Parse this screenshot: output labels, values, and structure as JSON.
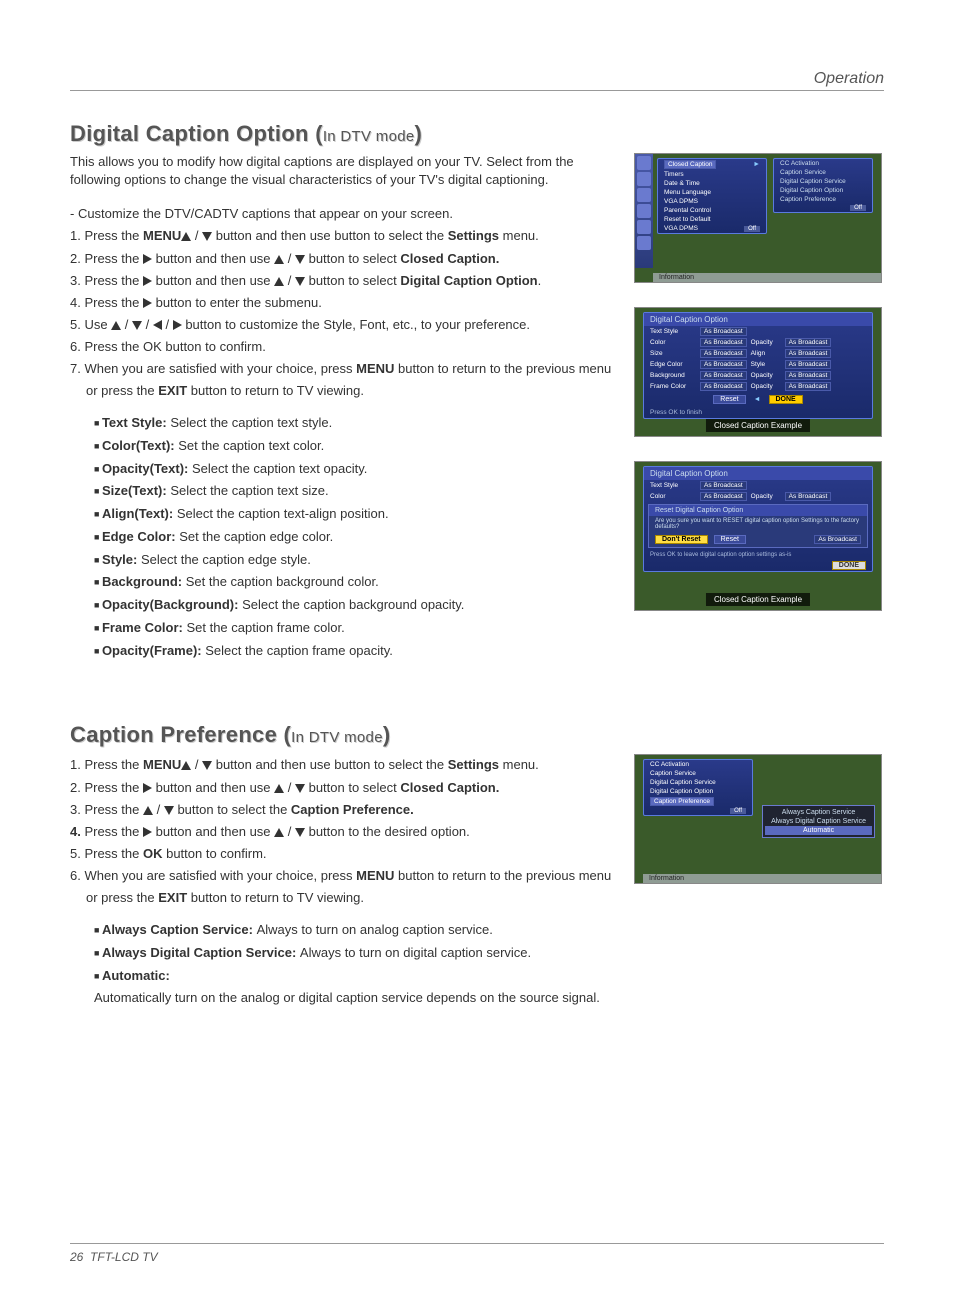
{
  "header": {
    "section": "Operation"
  },
  "section1": {
    "title_main": "Digital Caption Option (",
    "title_sub": "In DTV mode",
    "title_end": ")",
    "intro": "This allows you to modify how digital captions are displayed on your TV. Select from the following options to change the visual characteristics of your TV's digital captioning.",
    "note": "- Customize the DTV/CADTV captions that appear on your screen.",
    "steps": [
      {
        "n": "1.",
        "pre": "Press the ",
        "b1": "MENU",
        "mid": " button and then use ",
        "arrows": "ud",
        "post": " button to select the ",
        "b2": "Settings",
        "end": " menu."
      },
      {
        "n": "2.",
        "pre": "Press the ",
        "arrows": "r",
        "mid": " button and then use ",
        "arrows2": "ud",
        "post": " button to select ",
        "b2": "Closed Caption.",
        "end": ""
      },
      {
        "n": "3.",
        "pre": "Press the ",
        "arrows": "r",
        "mid": " button and then use ",
        "arrows2": "ud",
        "post": " button to select ",
        "b2": "Digital Caption Option",
        "end": "."
      },
      {
        "n": "4.",
        "pre": "Press the ",
        "arrows": "r",
        "mid": " button to enter the submenu.",
        "post": "",
        "end": ""
      },
      {
        "n": "5.",
        "pre": "Use ",
        "arrows": "udlr",
        "mid": " button to customize the Style, Font, etc., to your preference.",
        "post": "",
        "end": ""
      },
      {
        "n": "6.",
        "pre": "Press the OK button to confirm.",
        "mid": "",
        "post": "",
        "end": ""
      },
      {
        "n": "7.",
        "pre": "When you are satisfied with your choice,  press ",
        "b1": "MENU",
        "mid": " button to return to the previous menu or press the ",
        "b2": "EXIT",
        "end": " button to return to TV viewing."
      }
    ],
    "options": [
      {
        "label": "Text Style:",
        "desc": "Select the caption text style."
      },
      {
        "label": "Color(Text):",
        "desc": "Set the caption text color."
      },
      {
        "label": "Opacity(Text):",
        "desc": "Select the caption text opacity."
      },
      {
        "label": "Size(Text):",
        "desc": "Select the caption text size."
      },
      {
        "label": "Align(Text):",
        "desc": "Select the caption text-align position."
      },
      {
        "label": "Edge Color:",
        "desc": "Set the caption edge color."
      },
      {
        "label": "Style:",
        "desc": "Select the caption edge style."
      },
      {
        "label": "Background:",
        "desc": "Set the caption background color."
      },
      {
        "label": "Opacity(Background):",
        "desc": "Select the caption background opacity."
      },
      {
        "label": "Frame Color:",
        "desc": "Set the caption frame color."
      },
      {
        "label": "Opacity(Frame):",
        "desc": "Select the caption frame opacity."
      }
    ]
  },
  "section2": {
    "title_main": "Caption Preference (",
    "title_sub": "In DTV mode",
    "title_end": ")",
    "steps": [
      {
        "n": "1.",
        "pre": "Press the ",
        "b1": "MENU",
        "mid": " button and then use ",
        "arrows": "ud",
        "post": "  button to select the ",
        "b2": "Settings",
        "end": " menu."
      },
      {
        "n": "2.",
        "pre": " Press the ",
        "arrows": "r",
        "mid": " button and then use ",
        "arrows2": "ud",
        "post": " button to select ",
        "b2": "Closed Caption.",
        "end": ""
      },
      {
        "n": "3.",
        "pre": "Press the ",
        "arrows": "ud",
        "mid": " button to select the ",
        "b2": "Caption Preference.",
        "end": ""
      },
      {
        "n": "4.",
        "pre": "Press the ",
        "bold_n": true,
        "arrows": "r",
        "mid": " button and then use ",
        "arrows2": "ud",
        "post": " button to the desired option.",
        "end": ""
      },
      {
        "n": "5.",
        "pre": "Press the ",
        "b1": "OK",
        "mid": " button to confirm.",
        "end": ""
      },
      {
        "n": "6.",
        "pre": "When you are satisfied with your choice,  press ",
        "b1": "MENU",
        "mid": " button to return to the previous menu or press the ",
        "b2": "EXIT",
        "end": " button to return to TV viewing."
      }
    ],
    "options": [
      {
        "label": "Always Caption Service:",
        "desc": "Always to turn on analog caption service."
      },
      {
        "label": "Always Digital Caption Service:",
        "desc": "Always to turn on digital caption service."
      },
      {
        "label": "Automatic:",
        "desc": "Automatically turn on the analog or digital caption service depends on the source signal."
      }
    ]
  },
  "osd1": {
    "left_menu": [
      "Closed Caption",
      "Timers",
      "Date & Time",
      "Menu Language",
      "VGA DPMS",
      "Parental Control",
      "Reset to Default"
    ],
    "right_menu": [
      "CC Activation",
      "Caption Service",
      "Digital Caption Service",
      "Digital Caption Option",
      "Caption Preference"
    ],
    "badge_off": "Off",
    "info": "Information"
  },
  "osd2": {
    "title": "Digital Caption Option",
    "rows": [
      {
        "l": "Text Style",
        "v": "As Broadcast"
      },
      {
        "l": "Color",
        "v": "As Broadcast",
        "l2": "Opacity",
        "v2": "As Broadcast"
      },
      {
        "l": "Size",
        "v": "As Broadcast",
        "l2": "Align",
        "v2": "As Broadcast"
      },
      {
        "l": "Edge Color",
        "v": "As Broadcast",
        "l2": "Style",
        "v2": "As Broadcast"
      },
      {
        "l": "Background",
        "v": "As Broadcast",
        "l2": "Opacity",
        "v2": "As Broadcast"
      },
      {
        "l": "Frame Color",
        "v": "As Broadcast",
        "l2": "Opacity",
        "v2": "As Broadcast"
      }
    ],
    "reset": "Reset",
    "done": "DONE",
    "hint": "Press OK to finish",
    "caption": "Closed Caption Example"
  },
  "osd3": {
    "title": "Digital Caption Option",
    "reset_title": "Reset Digital Caption Option",
    "reset_msg": "Are you sure you want to RESET digital caption option Settings to the factory defaults?",
    "dont": "Don't Reset",
    "reset": "Reset",
    "hint": "Press OK to leave digital caption option settings as-is",
    "done": "DONE",
    "caption": "Closed Caption Example"
  },
  "osd4": {
    "left_menu": [
      "CC Activation",
      "Caption Service",
      "Digital Caption Service",
      "Digital Caption Option",
      "Caption Preference"
    ],
    "popup": [
      "Always Caption Service",
      "Always Digital Caption Service",
      "Automatic"
    ],
    "badge_off": "Off",
    "info": "Information"
  },
  "footer": {
    "page": "26",
    "title": "TFT-LCD TV"
  }
}
